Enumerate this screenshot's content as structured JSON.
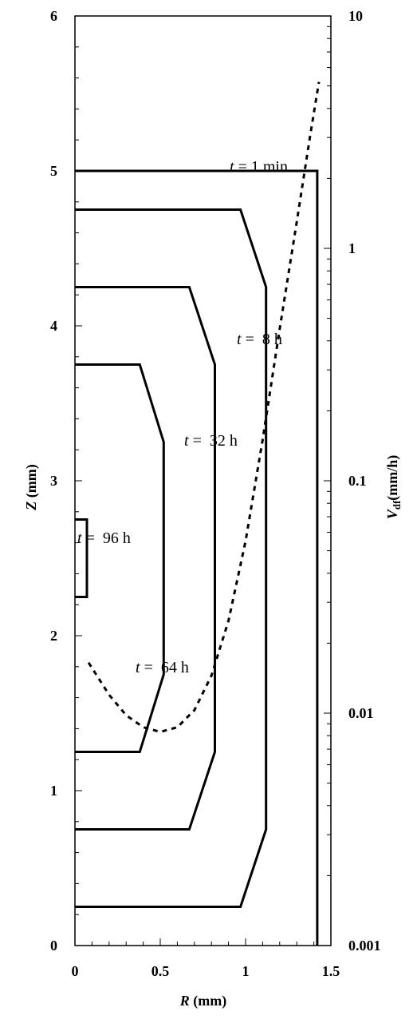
{
  "chart_data": {
    "type": "line",
    "xlabel": {
      "var": "R",
      "unit": " (mm)"
    },
    "ylabel": {
      "var": "Z",
      "unit": " (mm)"
    },
    "y2label": {
      "var": "V",
      "sub": "df",
      "unit": "(mm/h)"
    },
    "xlim": [
      0,
      1.5
    ],
    "ylim": [
      0,
      6
    ],
    "y2lim": [
      0.001,
      10
    ],
    "y2scale": "log",
    "xticks": [
      0,
      0.5,
      1,
      1.5
    ],
    "xtick_labels": [
      "0",
      "0.5",
      "1",
      "1.5"
    ],
    "yticks": [
      0,
      1,
      2,
      3,
      4,
      5,
      6
    ],
    "ytick_labels": [
      "0",
      "1",
      "2",
      "3",
      "4",
      "5",
      "6"
    ],
    "y2ticks": [
      0.001,
      0.01,
      0.1,
      1,
      10
    ],
    "y2tick_labels": [
      "0.001",
      "0.01",
      "0.1",
      "1",
      "10"
    ],
    "contours": [
      {
        "label_var": "t",
        "label_rest": " = 1 min",
        "points": [
          [
            0,
            5.0
          ],
          [
            1.42,
            5.0
          ],
          [
            1.42,
            0
          ]
        ]
      },
      {
        "label_var": "t",
        "label_rest": " =  8 h",
        "points": [
          [
            0,
            4.75
          ],
          [
            0.97,
            4.75
          ],
          [
            1.12,
            4.25
          ],
          [
            1.12,
            0.75
          ],
          [
            0.97,
            0.25
          ],
          [
            0,
            0.25
          ]
        ]
      },
      {
        "label_var": "t",
        "label_rest": " =  32 h",
        "points": [
          [
            0,
            4.25
          ],
          [
            0.67,
            4.25
          ],
          [
            0.82,
            3.75
          ],
          [
            0.82,
            1.25
          ],
          [
            0.67,
            0.75
          ],
          [
            0,
            0.75
          ]
        ]
      },
      {
        "label_var": "t",
        "label_rest": " =  64 h",
        "points": [
          [
            0,
            3.75
          ],
          [
            0.38,
            3.75
          ],
          [
            0.52,
            3.25
          ],
          [
            0.52,
            1.75
          ],
          [
            0.38,
            1.25
          ],
          [
            0,
            1.25
          ]
        ]
      },
      {
        "label_var": "t",
        "label_rest": " =  96 h",
        "points": [
          [
            0,
            2.75
          ],
          [
            0.07,
            2.75
          ],
          [
            0.07,
            2.25
          ],
          [
            0,
            2.25
          ]
        ]
      }
    ],
    "vdf_curve": {
      "line_style": "dashed",
      "points": [
        [
          0.08,
          0.0165
        ],
        [
          0.2,
          0.012
        ],
        [
          0.3,
          0.0098
        ],
        [
          0.4,
          0.0087
        ],
        [
          0.5,
          0.0083
        ],
        [
          0.6,
          0.0087
        ],
        [
          0.7,
          0.0103
        ],
        [
          0.8,
          0.0145
        ],
        [
          0.9,
          0.025
        ],
        [
          1.0,
          0.055
        ],
        [
          1.1,
          0.15
        ],
        [
          1.2,
          0.45
        ],
        [
          1.3,
          1.3
        ],
        [
          1.38,
          3.1
        ],
        [
          1.43,
          5.2
        ]
      ]
    }
  }
}
